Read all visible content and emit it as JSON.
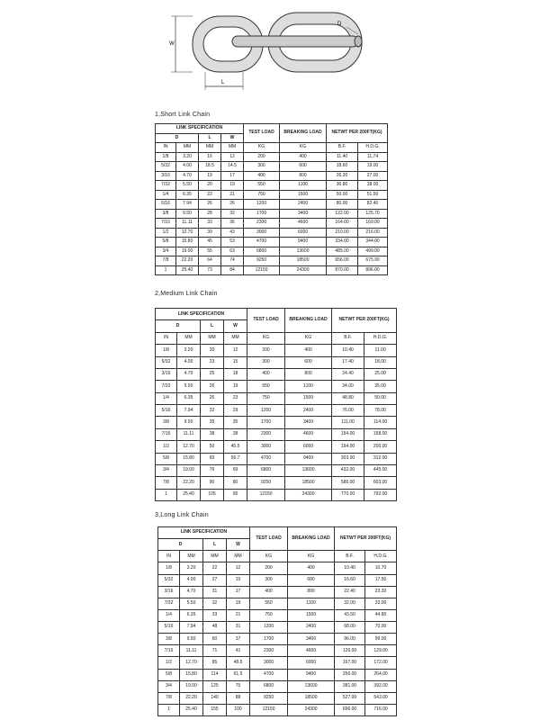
{
  "diagram": {
    "labels": {
      "w": "W",
      "l": "L",
      "d": "D"
    }
  },
  "tables": [
    {
      "title": "1,Short Link Chain",
      "header": {
        "spec": "LINK SPECIFICATION",
        "test_load": "TEST LOAD",
        "breaking_load": "BREAKING LOAD",
        "netwt": "NETWT PER 200FT(KG)",
        "dims": [
          "D",
          "L",
          "W"
        ],
        "units": [
          "IN",
          "MM",
          "MM",
          "MM",
          "KG",
          "KG",
          "B.F.",
          "H.D.G."
        ]
      },
      "rows": [
        [
          "1/8",
          "3.20",
          "16",
          "12",
          "200",
          "400",
          "11.40",
          "11.74"
        ],
        [
          "5/32",
          "4.00",
          "18.5",
          "14.5",
          "300",
          "600",
          "18.60",
          "19.00"
        ],
        [
          "3/16",
          "4.70",
          "19",
          "17",
          "400",
          "800",
          "26.20",
          "27.00"
        ],
        [
          "7/32",
          "5.50",
          "20",
          "19",
          "550",
          "1100",
          "36.80",
          "38.00"
        ],
        [
          "1/4",
          "6.35",
          "22",
          "21",
          "750",
          "1500",
          "50.00",
          "51.50"
        ],
        [
          "5/16",
          "7.94",
          "26",
          "26",
          "1200",
          "2400",
          "80.00",
          "82.40"
        ],
        [
          "3/8",
          "9.50",
          "28",
          "32",
          "1700",
          "3400",
          "122.00",
          "125.70"
        ],
        [
          "7/16",
          "11.11",
          "33",
          "36",
          "2300",
          "4600",
          "164.00",
          "169.00"
        ],
        [
          "1/2",
          "12.70",
          "39",
          "43",
          "3000",
          "6000",
          "210.00",
          "216.00"
        ],
        [
          "5/8",
          "15.80",
          "45",
          "53",
          "4700",
          "9400",
          "334.00",
          "344.00"
        ],
        [
          "3/4",
          "19.00",
          "55",
          "63",
          "6800",
          "13600",
          "485.00",
          "499.00"
        ],
        [
          "7/8",
          "22.20",
          "64",
          "74",
          "9250",
          "18500",
          "656.00",
          "675.00"
        ],
        [
          "1",
          "25.40",
          "73",
          "84",
          "12150",
          "24300",
          "870.00",
          "896.00"
        ]
      ]
    },
    {
      "title": "2,Medium Link Chain",
      "header": {
        "spec": "LINK SPECIFICATION",
        "test_load": "TEST LOAD",
        "breaking_load": "BREAKING LOAD",
        "netwt": "NETWT PER 200FT(KG)",
        "dims": [
          "D",
          "L",
          "W"
        ],
        "units": [
          "IN",
          "MM",
          "MM",
          "MM",
          "KG",
          "KG",
          "B.F.",
          "H.D.G."
        ]
      },
      "rows": [
        [
          "1/8",
          "3.20",
          "20",
          "12",
          "200",
          "400",
          "10.40",
          "11.00"
        ],
        [
          "5/32",
          "4.00",
          "23",
          "15",
          "300",
          "600",
          "17.40",
          "18.00"
        ],
        [
          "3/16",
          "4.70",
          "25",
          "18",
          "400",
          "800",
          "24.40",
          "25.00"
        ],
        [
          "7/32",
          "5.50",
          "26",
          "19",
          "550",
          "1100",
          "34.00",
          "35.00"
        ],
        [
          "1/4",
          "6.35",
          "26",
          "23",
          "750",
          "1500",
          "48.80",
          "50.00"
        ],
        [
          "5/16",
          "7.94",
          "32",
          "29",
          "1200",
          "2400",
          "76.00",
          "78.00"
        ],
        [
          "3/8",
          "9.50",
          "35",
          "35",
          "1700",
          "3400",
          "111.00",
          "114.00"
        ],
        [
          "7/16",
          "11.11",
          "38",
          "38",
          "2300",
          "4600",
          "154.00",
          "158.00"
        ],
        [
          "1/2",
          "12.70",
          "50",
          "45.5",
          "3000",
          "6000",
          "194.00",
          "200.00"
        ],
        [
          "5/8",
          "15.80",
          "60",
          "56.7",
          "4700",
          "9400",
          "303.00",
          "312.00"
        ],
        [
          "3/4",
          "19.00",
          "76",
          "69",
          "6800",
          "13600",
          "432.00",
          "445.00"
        ],
        [
          "7/8",
          "22.20",
          "90",
          "80",
          "9250",
          "18500",
          "586.00",
          "603.00"
        ],
        [
          "1",
          "25.40",
          "105",
          "95",
          "12150",
          "24300",
          "770.00",
          "792.00"
        ]
      ]
    },
    {
      "title": "3,Long Link Chain",
      "header": {
        "spec": "LINK SPECIFICATION",
        "test_load": "TEST LOAD",
        "breaking_load": "BREAKING LOAD",
        "netwt": "NETWT PER 200FT(KG)",
        "dims": [
          "D",
          "L",
          "W"
        ],
        "units": [
          "IN",
          "MM",
          "MM",
          "MM",
          "KG",
          "KG",
          "B.F.",
          "H.D.G."
        ]
      },
      "rows": [
        [
          "1/8",
          "3.20",
          "22",
          "12",
          "200",
          "400",
          "10.40",
          "10.70"
        ],
        [
          "5/32",
          "4.00",
          "27",
          "15",
          "300",
          "600",
          "16.60",
          "17.50"
        ],
        [
          "3/16",
          "4.70",
          "31",
          "17",
          "400",
          "800",
          "22.40",
          "23.30"
        ],
        [
          "7/32",
          "5.50",
          "32",
          "19",
          "550",
          "1100",
          "32.00",
          "33.00"
        ],
        [
          "1/4",
          "6.35",
          "33",
          "21",
          "750",
          "1500",
          "43.50",
          "44.80"
        ],
        [
          "5/16",
          "7.94",
          "48",
          "31",
          "1200",
          "2400",
          "68.00",
          "70.00"
        ],
        [
          "3/8",
          "9.50",
          "60",
          "37",
          "1700",
          "3400",
          "96.00",
          "99.00"
        ],
        [
          "7/16",
          "11.11",
          "71",
          "41",
          "2300",
          "4600",
          "126.00",
          "129.00"
        ],
        [
          "1/2",
          "12.70",
          "85",
          "48.5",
          "3000",
          "6000",
          "167.00",
          "172.00"
        ],
        [
          "5/8",
          "15.80",
          "114",
          "61.5",
          "4700",
          "9400",
          "256.00",
          "264.00"
        ],
        [
          "3/4",
          "19.00",
          "125",
          "75",
          "6800",
          "13600",
          "381.00",
          "392.00"
        ],
        [
          "7/8",
          "22.20",
          "140",
          "88",
          "9250",
          "18500",
          "527.00",
          "543.00"
        ],
        [
          "1",
          "25.40",
          "155",
          "100",
          "12150",
          "24300",
          "696.00",
          "716.00"
        ]
      ]
    }
  ]
}
